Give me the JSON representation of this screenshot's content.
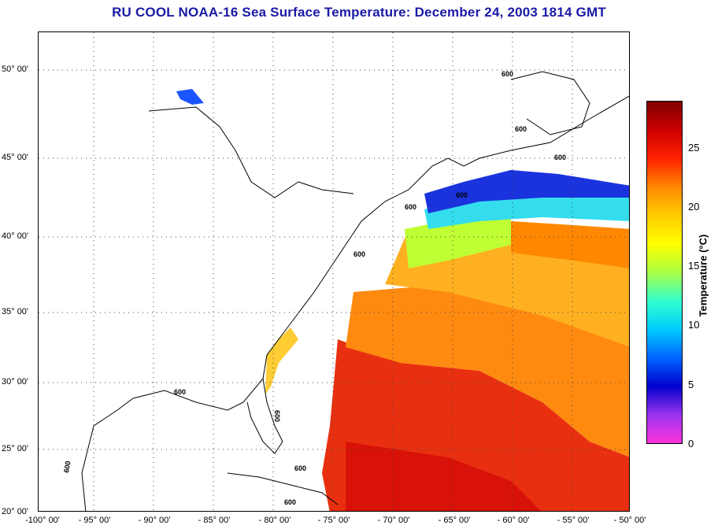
{
  "title": "RU COOL  NOAA-16  Sea Surface Temperature:  December 24, 2003 1814 GMT",
  "map": {
    "lat_labels": [
      "50° 00'",
      "45° 00'",
      "40° 00'",
      "35° 00'",
      "30° 00'",
      "25° 00'",
      "20° 00'"
    ],
    "lon_labels": [
      "-100° 00'",
      "- 95° 00'",
      "- 90° 00'",
      "- 85° 00'",
      "- 80° 00'",
      "- 75° 00'",
      "- 70° 00'",
      "- 65° 00'",
      "- 60° 00'",
      "- 55° 00'",
      "- 50° 00'"
    ],
    "contour_label": "600"
  },
  "colorbar": {
    "label": "Temperature (°C)",
    "ticks": [
      "25",
      "20",
      "15",
      "10",
      "5",
      "0"
    ],
    "colors": [
      "#ff33dd",
      "#9933ee",
      "#0000cc",
      "#0066ff",
      "#00ccff",
      "#33ffcc",
      "#aaff44",
      "#ffff00",
      "#ffcc00",
      "#ff8800",
      "#ff2200",
      "#cc0000",
      "#800000"
    ]
  }
}
